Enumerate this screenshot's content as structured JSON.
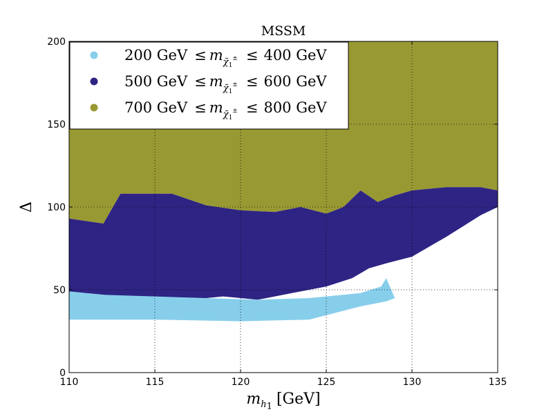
{
  "chart_data": {
    "type": "scatter",
    "title": "MSSM",
    "xlabel": {
      "base": "m",
      "sub": "h",
      "subsub": "1",
      "unit": "[GeV]"
    },
    "ylabel": "Δ",
    "xlim": [
      110,
      135
    ],
    "ylim": [
      0,
      200
    ],
    "xticks": [
      "110",
      "115",
      "120",
      "125",
      "130",
      "135"
    ],
    "yticks": [
      "0",
      "50",
      "100",
      "150",
      "200"
    ],
    "grid": true,
    "legend_position": "top-left",
    "series": [
      {
        "legend": {
          "lo": "200 GeV",
          "le": "≤",
          "m": "m",
          "chi": "χ̃",
          "chisub": "1",
          "chisup": "±",
          "hi": "400 GeV"
        },
        "color": "#87ceeb",
        "upper": [
          [
            110,
            49
          ],
          [
            112,
            47
          ],
          [
            115,
            46
          ],
          [
            118,
            45
          ],
          [
            121,
            44
          ],
          [
            124,
            45
          ],
          [
            127,
            48
          ],
          [
            128.2,
            52
          ],
          [
            128.5,
            57
          ]
        ],
        "lower": [
          [
            110,
            32
          ],
          [
            115,
            32
          ],
          [
            120,
            31
          ],
          [
            124,
            32
          ],
          [
            125.5,
            36
          ],
          [
            127,
            40
          ],
          [
            128.5,
            43
          ],
          [
            129,
            45
          ],
          [
            128.5,
            57
          ]
        ]
      },
      {
        "legend": {
          "lo": "500 GeV",
          "le": "≤",
          "m": "m",
          "chi": "χ̃",
          "chisub": "1",
          "chisup": "±",
          "hi": "600 GeV"
        },
        "color": "#2e2484",
        "upper": [
          [
            110,
            93
          ],
          [
            112,
            90
          ],
          [
            113,
            108
          ],
          [
            116,
            108
          ],
          [
            118,
            101
          ],
          [
            120,
            98
          ],
          [
            122,
            97
          ],
          [
            123.5,
            100
          ],
          [
            125,
            96
          ],
          [
            126,
            100
          ],
          [
            127,
            110
          ],
          [
            128,
            103
          ],
          [
            129,
            107
          ],
          [
            130,
            110
          ],
          [
            132,
            112
          ],
          [
            134,
            112
          ],
          [
            135,
            110
          ]
        ],
        "lower": [
          [
            110,
            49
          ],
          [
            113,
            46
          ],
          [
            116,
            43
          ],
          [
            119,
            46
          ],
          [
            121,
            44
          ],
          [
            123,
            48
          ],
          [
            125,
            52
          ],
          [
            126.5,
            57
          ],
          [
            127.5,
            63
          ],
          [
            128.5,
            66
          ],
          [
            130,
            70
          ],
          [
            132,
            82
          ],
          [
            134,
            95
          ],
          [
            135,
            100
          ]
        ]
      },
      {
        "legend": {
          "lo": "700 GeV",
          "le": "≤",
          "m": "m",
          "chi": "χ̃",
          "chisub": "1",
          "chisup": "±",
          "hi": "800 GeV"
        },
        "color": "#999933",
        "upper": [
          [
            110,
            200
          ],
          [
            135,
            200
          ]
        ],
        "lower": [
          [
            110,
            93
          ],
          [
            112,
            90
          ],
          [
            113,
            108
          ],
          [
            116,
            108
          ],
          [
            118,
            101
          ],
          [
            120,
            98
          ],
          [
            122,
            97
          ],
          [
            123.5,
            100
          ],
          [
            125,
            96
          ],
          [
            126,
            100
          ],
          [
            127,
            110
          ],
          [
            128,
            103
          ],
          [
            129,
            107
          ],
          [
            130,
            110
          ],
          [
            132,
            112
          ],
          [
            134,
            112
          ],
          [
            135,
            110
          ]
        ]
      }
    ]
  }
}
